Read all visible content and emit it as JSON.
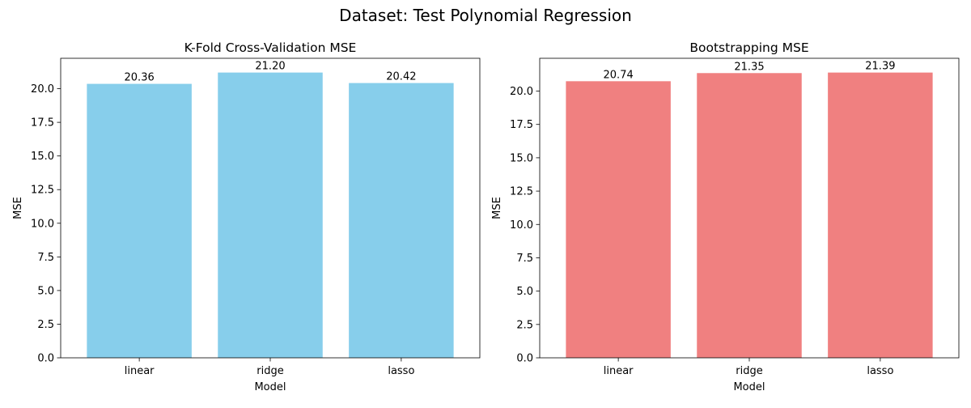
{
  "suptitle": "Dataset: Test Polynomial Regression",
  "chart_data": [
    {
      "type": "bar",
      "title": "K-Fold Cross-Validation MSE",
      "xlabel": "Model",
      "ylabel": "MSE",
      "categories": [
        "linear",
        "ridge",
        "lasso"
      ],
      "values": [
        20.36,
        21.2,
        20.42
      ],
      "value_labels": [
        "20.36",
        "21.20",
        "20.42"
      ],
      "ylim": [
        0,
        22.26
      ],
      "yticks": [
        0,
        2.5,
        5,
        7.5,
        10,
        12.5,
        15,
        17.5,
        20
      ],
      "ytick_labels": [
        "0.0",
        "2.5",
        "5.0",
        "7.5",
        "10.0",
        "12.5",
        "15.0",
        "17.5",
        "20.0"
      ],
      "color": "#87ceeb",
      "grid": false
    },
    {
      "type": "bar",
      "title": "Bootstrapping MSE",
      "xlabel": "Model",
      "ylabel": "MSE",
      "categories": [
        "linear",
        "ridge",
        "lasso"
      ],
      "values": [
        20.74,
        21.35,
        21.39
      ],
      "value_labels": [
        "20.74",
        "21.35",
        "21.39"
      ],
      "ylim": [
        0,
        22.46
      ],
      "yticks": [
        0,
        2.5,
        5,
        7.5,
        10,
        12.5,
        15,
        17.5,
        20
      ],
      "ytick_labels": [
        "0.0",
        "2.5",
        "5.0",
        "7.5",
        "10.0",
        "12.5",
        "15.0",
        "17.5",
        "20.0"
      ],
      "color": "#f08080",
      "grid": false
    }
  ]
}
